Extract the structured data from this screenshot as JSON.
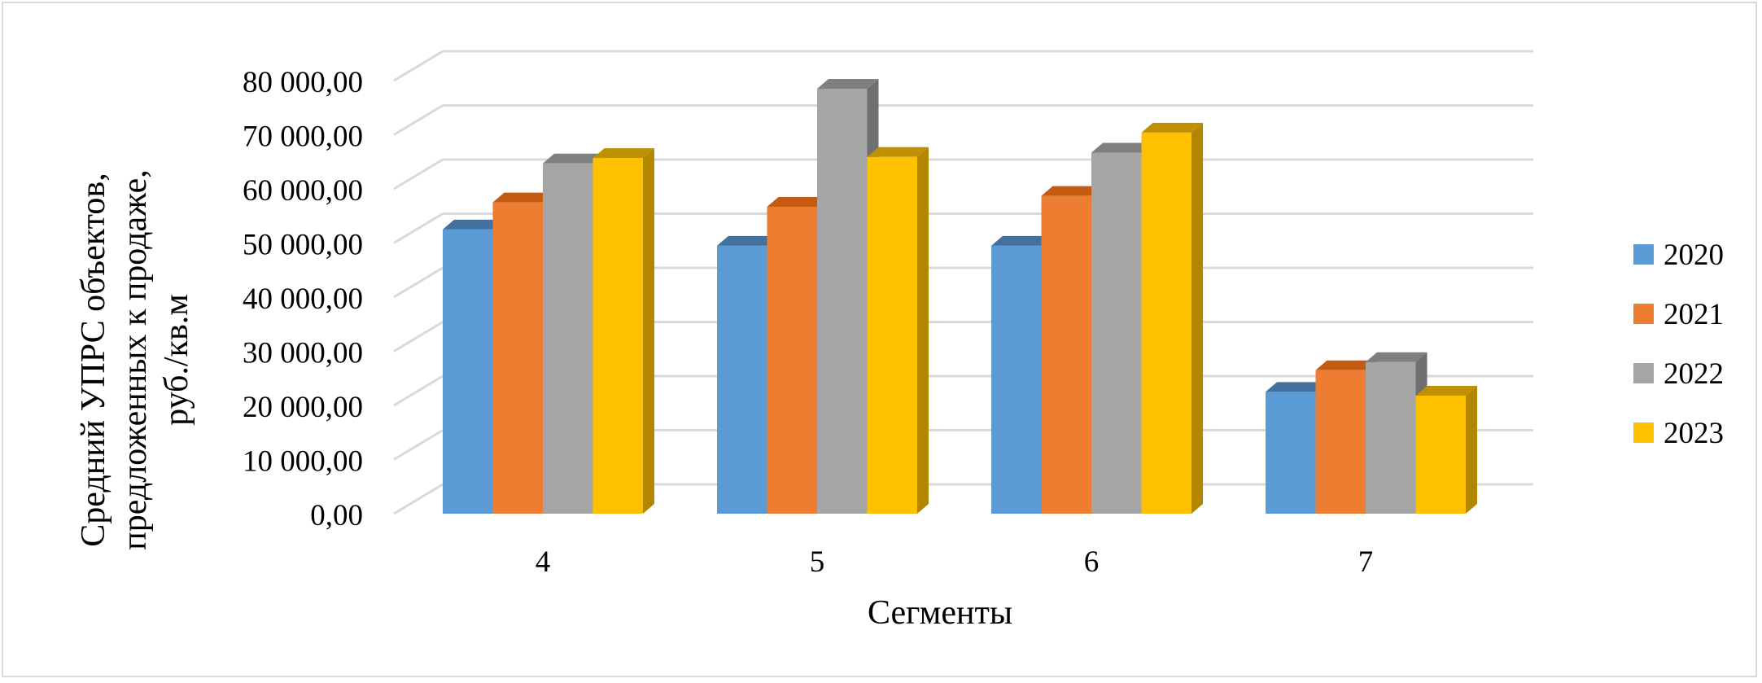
{
  "chart_data": {
    "type": "bar",
    "variant": "clustered-3d-column",
    "title": "",
    "xlabel": "Сегменты",
    "ylabel_lines": [
      "Средний УПРС объектов,",
      "предложенных к продаже,",
      "руб./кв.м"
    ],
    "categories": [
      "4",
      "5",
      "6",
      "7"
    ],
    "y_ticks": [
      {
        "value": 0,
        "label": "0,00"
      },
      {
        "value": 10000,
        "label": "10 000,00"
      },
      {
        "value": 20000,
        "label": "20 000,00"
      },
      {
        "value": 30000,
        "label": "30 000,00"
      },
      {
        "value": 40000,
        "label": "40 000,00"
      },
      {
        "value": 50000,
        "label": "50 000,00"
      },
      {
        "value": 60000,
        "label": "60 000,00"
      },
      {
        "value": 70000,
        "label": "70 000,00"
      },
      {
        "value": 80000,
        "label": "80 000,00"
      }
    ],
    "ylim": [
      0,
      85000
    ],
    "grid": true,
    "legend_position": "right",
    "series": [
      {
        "name": "2020",
        "color": "#5b9bd5",
        "side": "#41719c",
        "top": "#41719c",
        "values": [
          52500,
          49500,
          49500,
          22500
        ]
      },
      {
        "name": "2021",
        "color": "#ed7d31",
        "side": "#ae5a21",
        "top": "#c55a11",
        "values": [
          57500,
          56700,
          58700,
          26500
        ]
      },
      {
        "name": "2022",
        "color": "#a5a5a5",
        "side": "#6f6f6f",
        "top": "#7f7f7f",
        "values": [
          64700,
          78500,
          66700,
          28000
        ]
      },
      {
        "name": "2023",
        "color": "#ffc000",
        "side": "#b38600",
        "top": "#bf9000",
        "values": [
          65700,
          65900,
          70400,
          21800
        ]
      }
    ]
  }
}
